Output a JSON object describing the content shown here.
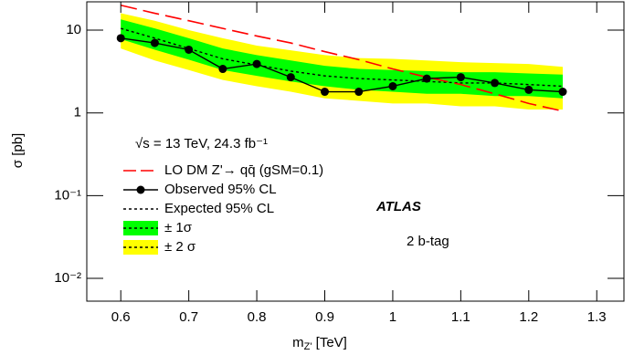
{
  "chart_data": {
    "type": "line",
    "log_y": true,
    "x_label": "m",
    "x_label_sub": "Z'",
    "x_label_unit": " [TeV]",
    "y_label": "σ [pb]",
    "annotations": [
      "√s = 13 TeV, 24.3 fb⁻¹",
      "ATLAS",
      "2 b-tag"
    ],
    "xlim": [
      0.55,
      1.34
    ],
    "ylim": [
      0.0053,
      22
    ],
    "xticks": [
      0.6,
      0.7,
      0.8,
      0.9,
      1,
      1.1,
      1.2,
      1.3
    ],
    "yticks": [
      {
        "value": 0.01,
        "label": "10⁻²"
      },
      {
        "value": 0.1,
        "label": "10⁻¹"
      },
      1,
      10
    ],
    "x": [
      0.6,
      0.65,
      0.7,
      0.75,
      0.8,
      0.85,
      0.9,
      0.95,
      1.0,
      1.05,
      1.1,
      1.15,
      1.2,
      1.25
    ],
    "series": [
      {
        "name": "LO DM Z'→ qq̄ (gSM=0.1)",
        "kind": "line",
        "style": "dashed",
        "color": "#ff0000",
        "values": [
          20,
          16,
          13,
          10.5,
          8.5,
          7,
          5.5,
          4.4,
          3.4,
          2.7,
          2.2,
          1.7,
          1.3,
          1.05
        ]
      },
      {
        "name": "Observed 95% CL",
        "kind": "line",
        "style": "markers",
        "color": "#000000",
        "values": [
          8.0,
          7.0,
          5.8,
          3.4,
          3.9,
          2.7,
          1.8,
          1.8,
          2.1,
          2.6,
          2.7,
          2.3,
          1.9,
          1.8
        ]
      },
      {
        "name": "Expected 95% CL",
        "kind": "line",
        "style": "dotted",
        "color": "#000000",
        "values": [
          10.5,
          8,
          6,
          4.5,
          3.8,
          3.2,
          2.8,
          2.6,
          2.5,
          2.4,
          2.3,
          2.3,
          2.2,
          2.1
        ]
      },
      {
        "name": "± 1σ",
        "kind": "band",
        "color": "#00ff00",
        "lower": [
          7.8,
          5.8,
          4.4,
          3.3,
          2.8,
          2.4,
          2.1,
          1.9,
          1.8,
          1.7,
          1.7,
          1.6,
          1.6,
          1.5
        ],
        "upper": [
          13.5,
          10.5,
          8,
          6,
          5,
          4.3,
          3.7,
          3.4,
          3.3,
          3.2,
          3.1,
          3.1,
          3.0,
          2.9
        ]
      },
      {
        "name": "± 2 σ",
        "kind": "band",
        "color": "#ffff00",
        "lower": [
          6,
          4.3,
          3.3,
          2.5,
          2.1,
          1.8,
          1.5,
          1.4,
          1.3,
          1.3,
          1.2,
          1.2,
          1.1,
          1.1
        ],
        "upper": [
          16,
          13,
          10,
          8,
          6.5,
          5.7,
          5,
          4.6,
          4.5,
          4.3,
          4.1,
          4.0,
          3.9,
          3.6
        ]
      }
    ]
  }
}
